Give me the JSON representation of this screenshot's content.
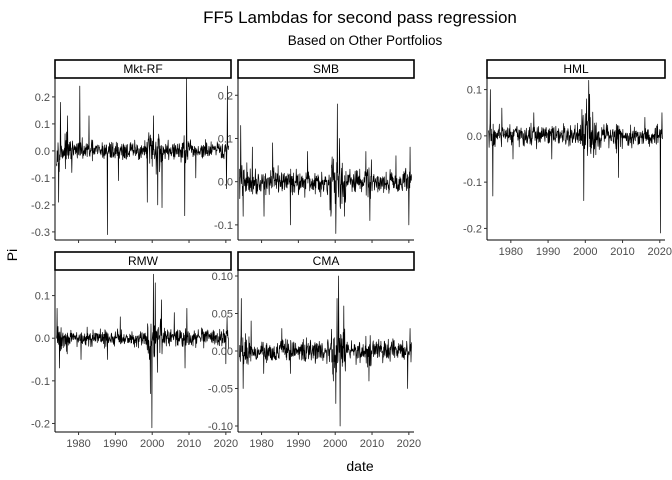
{
  "chart_data": {
    "type": "line",
    "title": "FF5 Lambdas for second pass regression",
    "subtitle": "Based on Other Portfolios",
    "xlabel": "date",
    "ylabel": "Pi",
    "xlim": [
      1973.6,
      2021.4
    ],
    "x_ticks": [
      1980,
      1990,
      2000,
      2010,
      2020
    ],
    "grid": false,
    "legend": "none",
    "line_color": "#000000",
    "panels": [
      {
        "name": "Mkt-RF",
        "ylim": [
          -0.33,
          0.27
        ],
        "y_ticks": [
          -0.3,
          -0.2,
          -0.1,
          0.0,
          0.1,
          0.2
        ],
        "y_tick_labels": [
          "-0.3",
          "-0.2",
          "-0.1",
          "0.0",
          "0.1",
          "0.2"
        ],
        "vol": 0.028,
        "spikes": [
          [
            1974.6,
            -0.19
          ],
          [
            1975.1,
            0.18
          ],
          [
            1977.0,
            0.13
          ],
          [
            1978.2,
            -0.08
          ],
          [
            1980.3,
            0.24
          ],
          [
            1982.8,
            0.13
          ],
          [
            1987.8,
            -0.31
          ],
          [
            1990.8,
            -0.11
          ],
          [
            1998.7,
            -0.19
          ],
          [
            2000.3,
            0.13
          ],
          [
            2001.5,
            -0.2
          ],
          [
            2002.7,
            -0.21
          ],
          [
            2008.8,
            -0.24
          ],
          [
            2009.3,
            0.27
          ],
          [
            2011.8,
            -0.1
          ],
          [
            2020.2,
            -0.14
          ],
          [
            2020.4,
            0.24
          ]
        ]
      },
      {
        "name": "SMB",
        "ylim": [
          -0.135,
          0.24
        ],
        "y_ticks": [
          -0.1,
          0.0,
          0.1,
          0.2
        ],
        "y_tick_labels": [
          "-0.1",
          "0.0",
          "0.1",
          "0.2"
        ],
        "vol": 0.022,
        "spikes": [
          [
            1974.3,
            0.13
          ],
          [
            1975.0,
            -0.08
          ],
          [
            1977.5,
            0.08
          ],
          [
            1980.7,
            -0.08
          ],
          [
            1983.0,
            0.09
          ],
          [
            1987.8,
            -0.1
          ],
          [
            1992.5,
            0.07
          ],
          [
            1998.8,
            -0.08
          ],
          [
            2000.2,
            -0.12
          ],
          [
            2000.6,
            0.18
          ],
          [
            2001.2,
            0.1
          ],
          [
            2002.5,
            -0.08
          ],
          [
            2008.3,
            0.07
          ],
          [
            2009.4,
            -0.09
          ],
          [
            2016.5,
            0.06
          ],
          [
            2020.0,
            -0.1
          ],
          [
            2020.3,
            0.08
          ]
        ]
      },
      {
        "name": "HML",
        "ylim": [
          -0.225,
          0.125
        ],
        "y_ticks": [
          -0.2,
          -0.1,
          0.0,
          0.1
        ],
        "y_tick_labels": [
          "-0.2",
          "-0.1",
          "0.0",
          "0.1"
        ],
        "vol": 0.018,
        "spikes": [
          [
            1974.5,
            0.1
          ],
          [
            1975.2,
            -0.13
          ],
          [
            1977.6,
            0.06
          ],
          [
            1980.6,
            -0.05
          ],
          [
            1986.2,
            0.05
          ],
          [
            1991.0,
            -0.05
          ],
          [
            1999.6,
            -0.14
          ],
          [
            2000.3,
            0.08
          ],
          [
            2000.9,
            0.12
          ],
          [
            2001.2,
            0.09
          ],
          [
            2008.9,
            -0.09
          ],
          [
            2016.0,
            0.04
          ],
          [
            2020.2,
            -0.21
          ],
          [
            2020.6,
            0.05
          ]
        ]
      },
      {
        "name": "RMW",
        "ylim": [
          -0.22,
          0.16
        ],
        "y_ticks": [
          -0.2,
          -0.1,
          0.0,
          0.1
        ],
        "y_tick_labels": [
          "-0.2",
          "-0.1",
          "0.0",
          "0.1"
        ],
        "vol": 0.016,
        "spikes": [
          [
            1974.2,
            0.07
          ],
          [
            1974.8,
            -0.07
          ],
          [
            1980.7,
            -0.05
          ],
          [
            1987.8,
            -0.05
          ],
          [
            1991.3,
            0.05
          ],
          [
            1999.5,
            -0.13
          ],
          [
            1999.9,
            -0.21
          ],
          [
            2000.3,
            0.15
          ],
          [
            2000.8,
            0.13
          ],
          [
            2001.4,
            -0.08
          ],
          [
            2002.5,
            0.09
          ],
          [
            2006.0,
            0.06
          ],
          [
            2008.9,
            -0.07
          ],
          [
            2009.4,
            0.07
          ],
          [
            2020.0,
            -0.06
          ],
          [
            2020.3,
            0.05
          ]
        ]
      },
      {
        "name": "CMA",
        "ylim": [
          -0.108,
          0.108
        ],
        "y_ticks": [
          -0.1,
          -0.05,
          0.0,
          0.05,
          0.1
        ],
        "y_tick_labels": [
          "-0.10",
          "-0.05",
          "0.00",
          "0.05",
          "0.10"
        ],
        "vol": 0.011,
        "spikes": [
          [
            1974.5,
            0.07
          ],
          [
            1975.0,
            -0.05
          ],
          [
            1977.2,
            0.04
          ],
          [
            1980.6,
            -0.03
          ],
          [
            1985.5,
            0.03
          ],
          [
            1987.8,
            -0.03
          ],
          [
            1999.5,
            -0.04
          ],
          [
            2000.2,
            -0.07
          ],
          [
            2000.5,
            0.07
          ],
          [
            2000.9,
            0.1
          ],
          [
            2001.3,
            -0.1
          ],
          [
            2002.3,
            0.06
          ],
          [
            2009.2,
            -0.04
          ],
          [
            2019.7,
            -0.05
          ],
          [
            2020.3,
            0.03
          ]
        ]
      }
    ]
  }
}
